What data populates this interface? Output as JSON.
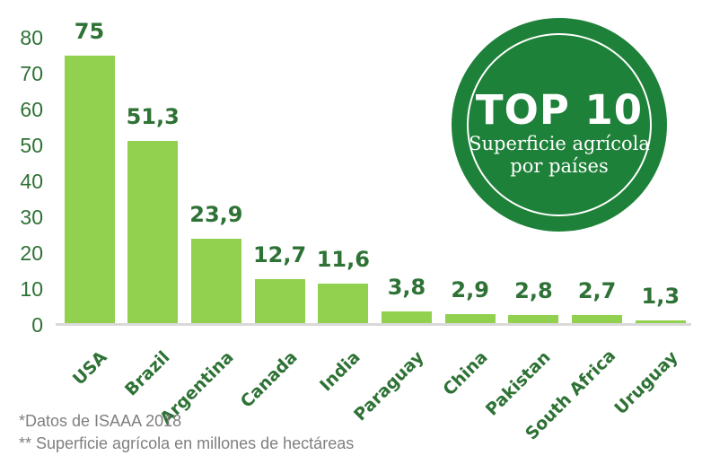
{
  "chart_data": {
    "type": "bar",
    "categories": [
      "USA",
      "Brazil",
      "Argentina",
      "Canada",
      "India",
      "Paraguay",
      "China",
      "Pakistan",
      "South Africa",
      "Uruguay"
    ],
    "values": [
      75,
      51.3,
      23.9,
      12.7,
      11.6,
      3.8,
      2.9,
      2.8,
      2.7,
      1.3
    ],
    "value_labels": [
      "75",
      "51,3",
      "23,9",
      "12,7",
      "11,6",
      "3,8",
      "2,9",
      "2,8",
      "2,7",
      "1,3"
    ],
    "title": "TOP 10 Superficie agrícola por países",
    "xlabel": "",
    "ylabel": "",
    "ylim": [
      0,
      80
    ],
    "yticks": [
      0,
      10,
      20,
      30,
      40,
      50,
      60,
      70,
      80
    ],
    "grid": false,
    "legend": false,
    "bar_color": "#92D050",
    "axis_line_color": "#D9D9D9",
    "label_color": "#2E7235"
  },
  "badge": {
    "title": "TOP 10",
    "subtitle_line1": "Superficie agrícola",
    "subtitle_line2": "por países",
    "bg_color": "#1E8139",
    "text_color": "#FFFFFF"
  },
  "footnotes": {
    "line1": "*Datos de ISAAA 2018",
    "line2": "** Superficie agrícola en millones de hectáreas"
  }
}
